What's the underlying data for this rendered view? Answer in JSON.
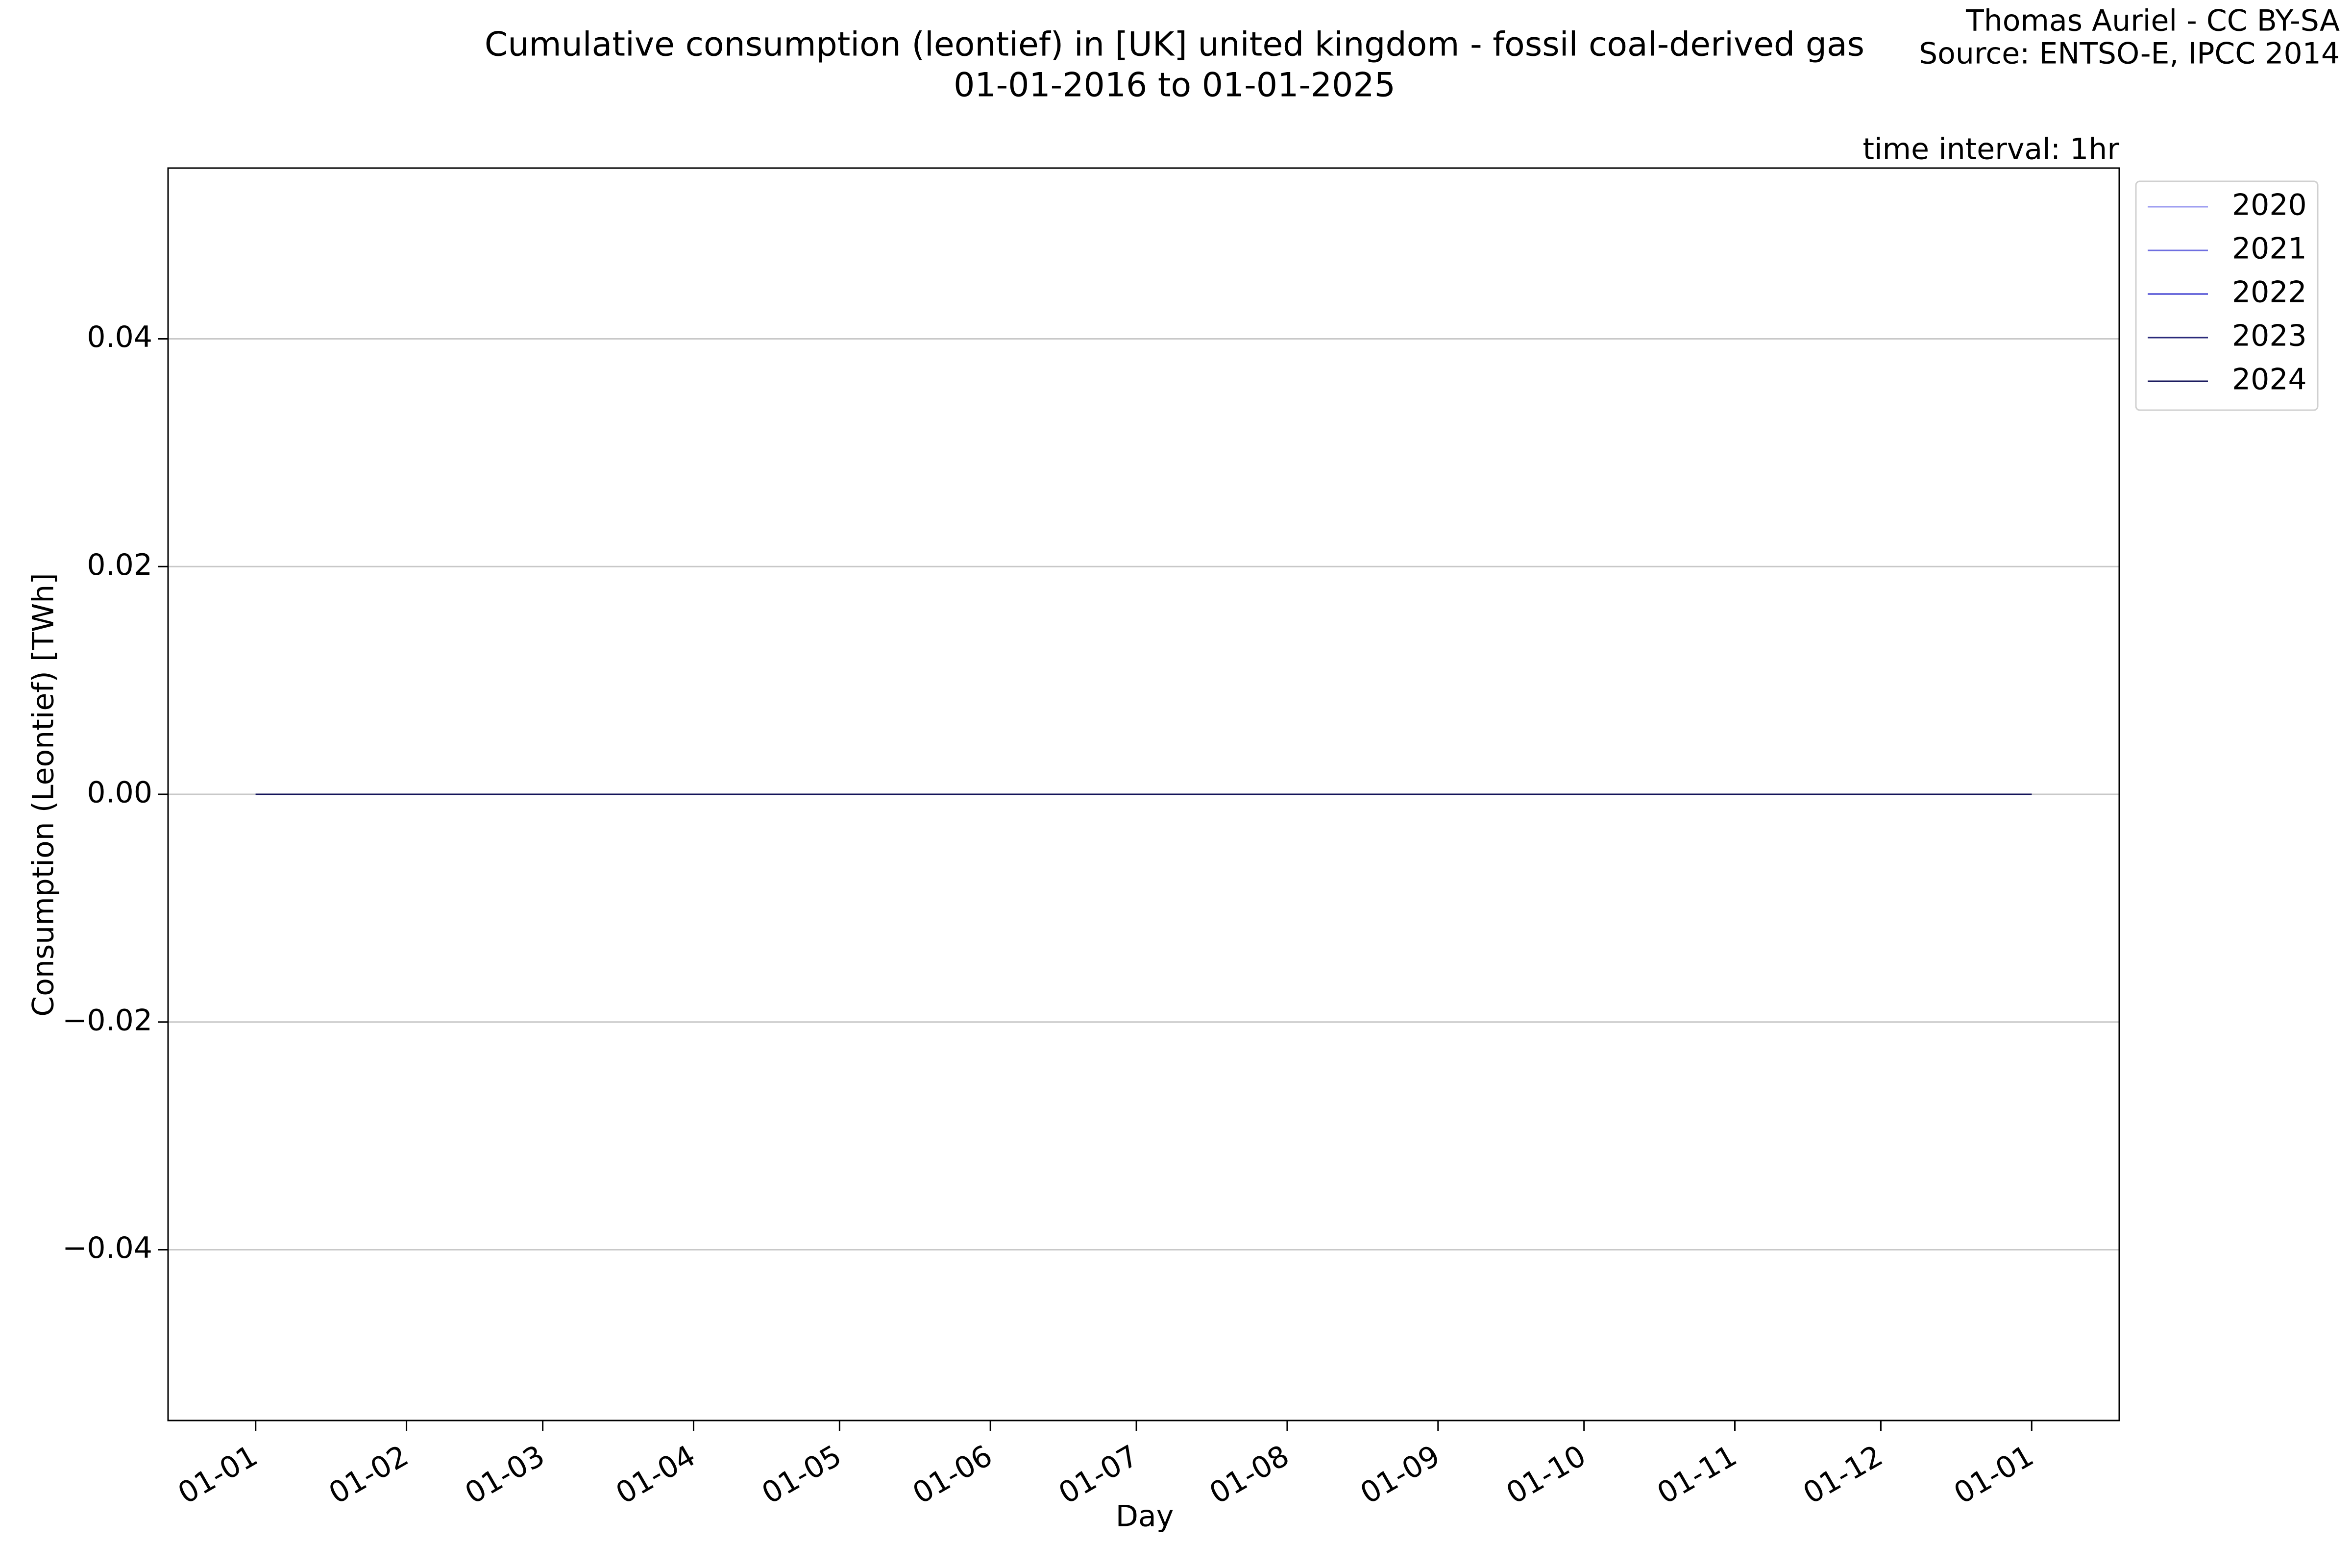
{
  "chart_data": {
    "type": "line",
    "title": "Cumulative consumption (leontief) in [UK] united kingdom - fossil coal-derived gas",
    "subtitle": "01-01-2016 to 01-01-2025",
    "credit": "Thomas Auriel - CC BY-SA",
    "source": "Source: ENTSO-E, IPCC 2014",
    "annotation": "time interval: 1hr",
    "x_label": "Day",
    "y_label": "Consumption (Leontief) [TWh]",
    "x": [
      0,
      365
    ],
    "series": [
      {
        "name": "2020",
        "color": "#9c9cf0",
        "values": [
          0,
          0
        ]
      },
      {
        "name": "2021",
        "color": "#6f6fe0",
        "values": [
          0,
          0
        ]
      },
      {
        "name": "2022",
        "color": "#3c3cd0",
        "values": [
          0,
          0
        ]
      },
      {
        "name": "2023",
        "color": "#2a2a7a",
        "values": [
          0,
          0
        ]
      },
      {
        "name": "2024",
        "color": "#14145a",
        "values": [
          0,
          0
        ]
      }
    ],
    "xlim": [
      -18,
      383
    ],
    "xticks": [
      {
        "value": 0,
        "label": "01-01"
      },
      {
        "value": 31,
        "label": "01-02"
      },
      {
        "value": 59,
        "label": "01-03"
      },
      {
        "value": 90,
        "label": "01-04"
      },
      {
        "value": 120,
        "label": "01-05"
      },
      {
        "value": 151,
        "label": "01-06"
      },
      {
        "value": 181,
        "label": "01-07"
      },
      {
        "value": 212,
        "label": "01-08"
      },
      {
        "value": 243,
        "label": "01-09"
      },
      {
        "value": 273,
        "label": "01-10"
      },
      {
        "value": 304,
        "label": "01-11"
      },
      {
        "value": 334,
        "label": "01-12"
      },
      {
        "value": 365,
        "label": "01-01"
      }
    ],
    "ylim": [
      -0.055,
      0.055
    ],
    "yticks": [
      {
        "value": -0.04,
        "label": "−0.04"
      },
      {
        "value": -0.02,
        "label": "−0.02"
      },
      {
        "value": 0,
        "label": "0.00"
      },
      0.02,
      0.04
    ],
    "grid": true,
    "legend": "outside"
  }
}
